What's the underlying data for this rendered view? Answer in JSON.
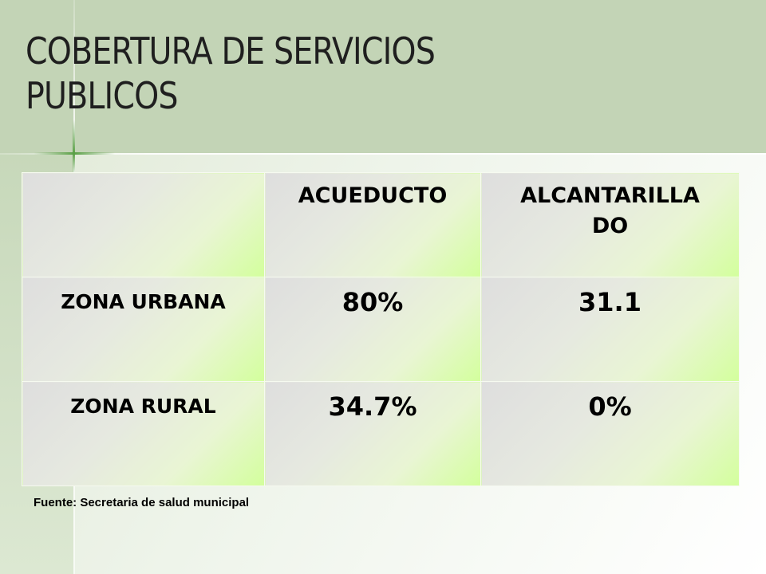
{
  "slide": {
    "title_line1": "COBERTURA DE SERVICIOS",
    "title_line2": "PUBLICOS",
    "source_note": "Fuente: Secretaria de salud municipal"
  },
  "table": {
    "headers": [
      "",
      "ACUEDUCTO",
      "ALCANTARILLA",
      "DO"
    ],
    "rows": [
      {
        "label": "ZONA URBANA",
        "acueducto": "80%",
        "alcantarillado": "31.1"
      },
      {
        "label": "ZONA RURAL",
        "acueducto": "34.7%",
        "alcantarillado": "0%"
      }
    ]
  },
  "colors": {
    "title_band": "#c3d4b6",
    "cell_gradient_start": "#dedede",
    "cell_gradient_end": "#d3ff9c",
    "accent_sparkle": "#5aa046"
  }
}
